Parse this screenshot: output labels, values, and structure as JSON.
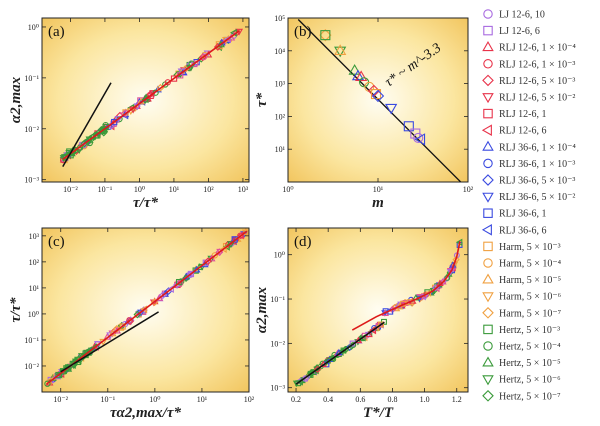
{
  "figure": {
    "colors": {
      "lj": "#9b59d6",
      "rlj": "#e8334a",
      "rljpink": "#e0509a",
      "rlj36": "#2f3fd6",
      "harm": "#f0a040",
      "hertz": "#3a9a3a",
      "redline": "#dd1a1a",
      "blackline": "#111111"
    },
    "legend": [
      {
        "label": "LJ 12-6, 10",
        "marker": "circle",
        "color": "#a86ae0"
      },
      {
        "label": "LJ 12-6, 6",
        "marker": "square",
        "color": "#a86ae0"
      },
      {
        "label": "RLJ 12-6, 1 × 10⁻⁴",
        "marker": "tri-up",
        "color": "#e8334a"
      },
      {
        "label": "RLJ 12-6, 1 × 10⁻³",
        "marker": "circle",
        "color": "#e8334a"
      },
      {
        "label": "RLJ 12-6, 5 × 10⁻³",
        "marker": "diamond",
        "color": "#e8334a"
      },
      {
        "label": "RLJ 12-6, 5 × 10⁻²",
        "marker": "tri-down",
        "color": "#e8334a"
      },
      {
        "label": "RLJ 12-6, 1",
        "marker": "square",
        "color": "#e8334a"
      },
      {
        "label": "RLJ 12-6, 6",
        "marker": "tri-left",
        "color": "#e8334a"
      },
      {
        "label": "RLJ 36-6, 1 × 10⁻⁴",
        "marker": "tri-up",
        "color": "#3a4ae0"
      },
      {
        "label": "RLJ 36-6, 1 × 10⁻³",
        "marker": "circle",
        "color": "#3a4ae0"
      },
      {
        "label": "RLJ 36-6, 5 × 10⁻³",
        "marker": "diamond",
        "color": "#3a4ae0"
      },
      {
        "label": "RLJ 36-6, 5 × 10⁻²",
        "marker": "tri-down",
        "color": "#3a4ae0"
      },
      {
        "label": "RLJ 36-6, 1",
        "marker": "square",
        "color": "#3a4ae0"
      },
      {
        "label": "RLJ 36-6, 6",
        "marker": "tri-left",
        "color": "#3a4ae0"
      },
      {
        "label": "Harm, 5 × 10⁻³",
        "marker": "square",
        "color": "#f0a040"
      },
      {
        "label": "Harm, 5 × 10⁻⁴",
        "marker": "circle",
        "color": "#f0a040"
      },
      {
        "label": "Harm, 5 × 10⁻⁵",
        "marker": "tri-up",
        "color": "#f0a040"
      },
      {
        "label": "Harm, 5 × 10⁻⁶",
        "marker": "tri-down",
        "color": "#f0a040"
      },
      {
        "label": "Harm, 5 × 10⁻⁷",
        "marker": "diamond",
        "color": "#f0a040"
      },
      {
        "label": "Hertz, 5 × 10⁻³",
        "marker": "square",
        "color": "#3a9a3a"
      },
      {
        "label": "Hertz, 5 × 10⁻⁴",
        "marker": "circle",
        "color": "#3a9a3a"
      },
      {
        "label": "Hertz, 5 × 10⁻⁵",
        "marker": "tri-up",
        "color": "#3a9a3a"
      },
      {
        "label": "Hertz, 5 × 10⁻⁶",
        "marker": "tri-down",
        "color": "#3a9a3a"
      },
      {
        "label": "Hertz, 5 × 10⁻⁷",
        "marker": "diamond",
        "color": "#3a9a3a"
      }
    ]
  },
  "chart_data": [
    {
      "panel": "(a)",
      "type": "scatter",
      "xlabel": "τ/τ*",
      "ylabel": "α2,max",
      "xscale": "log",
      "yscale": "log",
      "xlim": [
        0.0015,
        1500
      ],
      "ylim": [
        0.0009,
        1.5
      ],
      "xticks": [
        {
          "v": 0.01,
          "t": "10⁻²"
        },
        {
          "v": 0.1,
          "t": "10⁻¹"
        },
        {
          "v": 1,
          "t": "10⁰"
        },
        {
          "v": 10,
          "t": "10¹"
        },
        {
          "v": 100,
          "t": "10²"
        },
        {
          "v": 1000,
          "t": "10³"
        }
      ],
      "yticks": [
        {
          "v": 0.001,
          "t": "10⁻³"
        },
        {
          "v": 0.01,
          "t": "10⁻²"
        },
        {
          "v": 0.1,
          "t": "10⁻¹"
        },
        {
          "v": 1,
          "t": "10⁰"
        }
      ],
      "red_line": {
        "x": [
          0.006,
          800
        ],
        "y": [
          0.0025,
          0.85
        ]
      },
      "black_line": {
        "x": [
          0.006,
          0.15
        ],
        "y": [
          0.0018,
          0.08
        ]
      }
    },
    {
      "panel": "(b)",
      "type": "scatter",
      "xlabel": "m",
      "ylabel": "τ*",
      "xscale": "log",
      "yscale": "log",
      "xlim": [
        1,
        100
      ],
      "ylim": [
        1,
        100000
      ],
      "xticks": [
        {
          "v": 1,
          "t": "10⁰"
        },
        {
          "v": 10,
          "t": "10¹"
        },
        {
          "v": 100,
          "t": "10²"
        }
      ],
      "yticks": [
        {
          "v": 10,
          "t": "10¹"
        },
        {
          "v": 100,
          "t": "10²"
        },
        {
          "v": 1000,
          "t": "10³"
        },
        {
          "v": 10000,
          "t": "10⁴"
        },
        {
          "v": 100000,
          "t": "10⁵"
        }
      ],
      "annotation": "τ* ~ m^-3.3",
      "fit_line": {
        "x": [
          1.3,
          90
        ],
        "y": [
          90000,
          0.8
        ]
      },
      "points": [
        {
          "x": 2.6,
          "y": 30000,
          "c": "#f0a040",
          "m": "diamond"
        },
        {
          "x": 2.6,
          "y": 30000,
          "c": "#3a9a3a",
          "m": "square"
        },
        {
          "x": 3.8,
          "y": 10000,
          "c": "#3a9a3a",
          "m": "tri-down"
        },
        {
          "x": 3.8,
          "y": 10000,
          "c": "#f0a040",
          "m": "tri-up"
        },
        {
          "x": 5.5,
          "y": 2500,
          "c": "#3a9a3a",
          "m": "tri-up"
        },
        {
          "x": 6,
          "y": 1700,
          "c": "#3a4ae0",
          "m": "tri-up"
        },
        {
          "x": 6.5,
          "y": 1600,
          "c": "#e8334a",
          "m": "tri-up"
        },
        {
          "x": 7,
          "y": 1100,
          "c": "#3a9a3a",
          "m": "circle"
        },
        {
          "x": 8,
          "y": 800,
          "c": "#f0a040",
          "m": "circle"
        },
        {
          "x": 9,
          "y": 600,
          "c": "#e8334a",
          "m": "diamond"
        },
        {
          "x": 9.5,
          "y": 480,
          "c": "#f0a040",
          "m": "square"
        },
        {
          "x": 10,
          "y": 420,
          "c": "#3a4ae0",
          "m": "diamond"
        },
        {
          "x": 14,
          "y": 180,
          "c": "#3a4ae0",
          "m": "tri-down"
        },
        {
          "x": 22,
          "y": 50,
          "c": "#3a4ae0",
          "m": "square"
        },
        {
          "x": 26,
          "y": 30,
          "c": "#a86ae0",
          "m": "square"
        },
        {
          "x": 28,
          "y": 22,
          "c": "#a86ae0",
          "m": "circle"
        },
        {
          "x": 30,
          "y": 20,
          "c": "#3a4ae0",
          "m": "tri-left"
        }
      ]
    },
    {
      "panel": "(c)",
      "type": "scatter",
      "xlabel": "τα2,max/τ*",
      "ylabel": "τ/τ*",
      "xscale": "log",
      "yscale": "log",
      "xlim": [
        0.004,
        100
      ],
      "ylim": [
        0.001,
        2000
      ],
      "xticks": [
        {
          "v": 0.01,
          "t": "10⁻²"
        },
        {
          "v": 0.1,
          "t": "10⁻¹"
        },
        {
          "v": 1,
          "t": "10⁰"
        },
        {
          "v": 10,
          "t": "10¹"
        },
        {
          "v": 100,
          "t": "10²"
        }
      ],
      "yticks": [
        {
          "v": 0.01,
          "t": "10⁻²"
        },
        {
          "v": 0.1,
          "t": "10⁻¹"
        },
        {
          "v": 1,
          "t": "10⁰"
        },
        {
          "v": 10,
          "t": "10¹"
        },
        {
          "v": 100,
          "t": "10²"
        },
        {
          "v": 1000,
          "t": "10³"
        }
      ],
      "red_line": {
        "x": [
          0.005,
          90
        ],
        "y": [
          0.002,
          1500
        ]
      },
      "black_line": {
        "x": [
          0.01,
          1.2
        ],
        "y": [
          0.006,
          1.2
        ]
      }
    },
    {
      "panel": "(d)",
      "type": "scatter",
      "xlabel": "T*/T",
      "ylabel": "α2,max",
      "xscale": "linear",
      "yscale": "log",
      "xlim": [
        0.15,
        1.27
      ],
      "ylim": [
        0.0008,
        4
      ],
      "xticks": [
        {
          "v": 0.2,
          "t": "0.2"
        },
        {
          "v": 0.4,
          "t": "0.4"
        },
        {
          "v": 0.6,
          "t": "0.6"
        },
        {
          "v": 0.8,
          "t": "0.8"
        },
        {
          "v": 1.0,
          "t": "1.0"
        },
        {
          "v": 1.2,
          "t": "1.2"
        }
      ],
      "yticks": [
        {
          "v": 0.001,
          "t": "10⁻³"
        },
        {
          "v": 0.01,
          "t": "10⁻²"
        },
        {
          "v": 0.1,
          "t": "10⁻¹"
        },
        {
          "v": 1,
          "t": "10⁰"
        }
      ],
      "red_curve": {
        "x": [
          0.55,
          0.7,
          0.85,
          0.95,
          1.05,
          1.12,
          1.17,
          1.2,
          1.22
        ],
        "y": [
          0.02,
          0.04,
          0.07,
          0.1,
          0.15,
          0.25,
          0.45,
          0.9,
          2.0
        ]
      },
      "black_line": {
        "x": [
          0.2,
          0.75
        ],
        "y": [
          0.0012,
          0.03
        ]
      }
    }
  ]
}
